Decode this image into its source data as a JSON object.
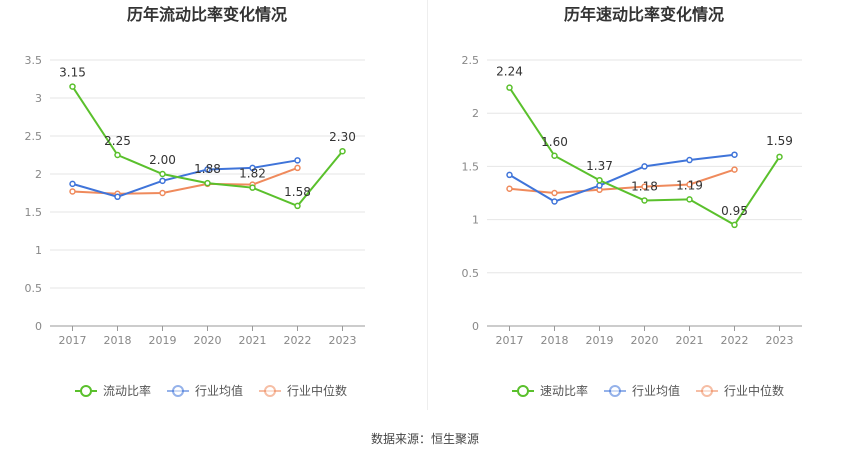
{
  "source_label": "数据来源：恒生聚源",
  "colors": {
    "primary": "#5ac02c",
    "average": "#3f74d9",
    "median": "#ef8a5c"
  },
  "chart_data": [
    {
      "type": "line",
      "title": "历年流动比率变化情况",
      "categories": [
        "2017",
        "2018",
        "2019",
        "2020",
        "2021",
        "2022",
        "2023"
      ],
      "ylim": [
        0,
        3.5
      ],
      "yticks": [
        0,
        0.5,
        1,
        1.5,
        2,
        2.5,
        3,
        3.5
      ],
      "ytick_labels": [
        "0",
        "0.5",
        "1",
        "1.5",
        "2",
        "2.5",
        "3",
        "3.5"
      ],
      "grid": true,
      "legend_position": "bottom",
      "series": [
        {
          "name": "流动比率",
          "values": [
            3.15,
            2.25,
            2.0,
            1.88,
            1.82,
            1.58,
            2.3
          ],
          "labels": [
            "3.15",
            "2.25",
            "2.00",
            "1.88",
            "1.82",
            "1.58",
            "2.30"
          ]
        },
        {
          "name": "行业均值",
          "values": [
            1.87,
            1.7,
            1.91,
            2.06,
            2.08,
            2.18,
            null
          ]
        },
        {
          "name": "行业中位数",
          "values": [
            1.77,
            1.74,
            1.75,
            1.87,
            1.86,
            2.08,
            null
          ]
        }
      ]
    },
    {
      "type": "line",
      "title": "历年速动比率变化情况",
      "categories": [
        "2017",
        "2018",
        "2019",
        "2020",
        "2021",
        "2022",
        "2023"
      ],
      "ylim": [
        0,
        2.5
      ],
      "yticks": [
        0,
        0.5,
        1,
        1.5,
        2,
        2.5
      ],
      "ytick_labels": [
        "0",
        "0.5",
        "1",
        "1.5",
        "2",
        "2.5"
      ],
      "grid": true,
      "legend_position": "bottom",
      "series": [
        {
          "name": "速动比率",
          "values": [
            2.24,
            1.6,
            1.37,
            1.18,
            1.19,
            0.95,
            1.59
          ],
          "labels": [
            "2.24",
            "1.60",
            "1.37",
            "1.18",
            "1.19",
            "0.95",
            "1.59"
          ]
        },
        {
          "name": "行业均值",
          "values": [
            1.42,
            1.17,
            1.32,
            1.5,
            1.56,
            1.61,
            null
          ]
        },
        {
          "name": "行业中位数",
          "values": [
            1.29,
            1.25,
            1.28,
            1.31,
            1.33,
            1.47,
            null
          ]
        }
      ]
    }
  ]
}
